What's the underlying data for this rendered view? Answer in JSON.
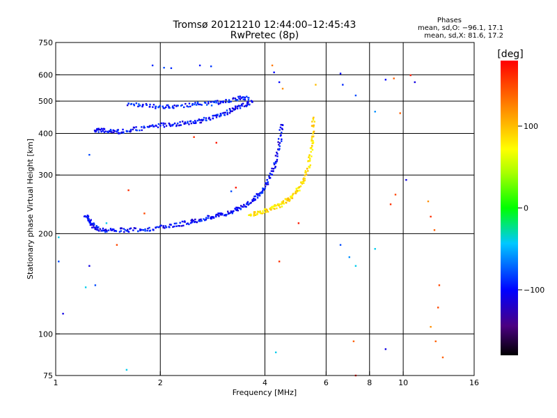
{
  "chart_data": {
    "type": "scatter",
    "title": "Tromsø 20121210 12:44:00–12:45:43",
    "subtitle": "RwPretec (8p)",
    "xlabel": "Frequency [MHz]",
    "ylabel": "Stationary phase Virtual Height [km]",
    "xscale": "log",
    "yscale": "log",
    "xlim": [
      1,
      16
    ],
    "ylim": [
      75,
      750
    ],
    "x_ticks": [
      1,
      2,
      4,
      6,
      8,
      10,
      16
    ],
    "x_tick_labels": [
      "1",
      "2",
      "4",
      "6",
      "8",
      "10",
      "16"
    ],
    "y_ticks": [
      75,
      100,
      200,
      300,
      400,
      500,
      600,
      750
    ],
    "y_tick_labels": [
      "75",
      "100",
      "200",
      "300",
      "400",
      "500",
      "600",
      "750"
    ],
    "x_grid": [
      1,
      2,
      4,
      6,
      8,
      10
    ],
    "y_grid": [
      100,
      200,
      300,
      400,
      500,
      600
    ],
    "grid": true,
    "phases": {
      "heading": "Phases",
      "o_line": "mean, sd,O: −96.1, 17.1",
      "x_line": "mean, sd,X:  81.6, 17.2"
    },
    "colorbar": {
      "label": "[deg]",
      "range": [
        -180,
        180
      ],
      "ticks": [
        100,
        0,
        -100
      ],
      "tick_labels": [
        "100",
        "0",
        "−100"
      ],
      "colormap": "rainbow (black→purple→blue→cyan→green→yellow→orange→red)"
    },
    "series": [
      {
        "description_key": "F2 O-mode trace",
        "phase_deg": -100,
        "points": [
          [
            1.22,
            228
          ],
          [
            1.25,
            218
          ],
          [
            1.28,
            212
          ],
          [
            1.32,
            207
          ],
          [
            1.4,
            205
          ],
          [
            1.55,
            205
          ],
          [
            1.7,
            205
          ],
          [
            1.9,
            207
          ],
          [
            2.1,
            210
          ],
          [
            2.3,
            214
          ],
          [
            2.5,
            218
          ],
          [
            2.7,
            222
          ],
          [
            2.9,
            226
          ],
          [
            3.1,
            230
          ],
          [
            3.3,
            236
          ],
          [
            3.5,
            243
          ],
          [
            3.7,
            252
          ],
          [
            3.85,
            262
          ],
          [
            4.0,
            276
          ],
          [
            4.15,
            295
          ],
          [
            4.3,
            330
          ],
          [
            4.42,
            380
          ],
          [
            4.48,
            430
          ]
        ]
      },
      {
        "description_key": "F2 O-mode second hop",
        "phase_deg": -100,
        "points": [
          [
            1.3,
            410
          ],
          [
            1.35,
            408
          ],
          [
            1.45,
            406
          ],
          [
            1.55,
            405
          ],
          [
            1.7,
            412
          ],
          [
            1.9,
            420
          ],
          [
            2.1,
            425
          ],
          [
            2.3,
            428
          ],
          [
            2.5,
            432
          ],
          [
            2.7,
            440
          ],
          [
            2.9,
            450
          ],
          [
            3.1,
            462
          ],
          [
            3.3,
            475
          ],
          [
            3.5,
            488
          ],
          [
            3.7,
            498
          ]
        ]
      },
      {
        "description_key": "upper trace",
        "phase_deg": -95,
        "points": [
          [
            1.6,
            485
          ],
          [
            1.8,
            488
          ],
          [
            2.0,
            480
          ],
          [
            2.2,
            483
          ],
          [
            2.5,
            488
          ],
          [
            2.8,
            492
          ],
          [
            3.1,
            500
          ],
          [
            3.4,
            510
          ],
          [
            3.6,
            512
          ]
        ]
      },
      {
        "description_key": "F2 X-mode trace",
        "phase_deg": 85,
        "points": [
          [
            3.6,
            228
          ],
          [
            3.8,
            231
          ],
          [
            4.0,
            234
          ],
          [
            4.2,
            238
          ],
          [
            4.4,
            243
          ],
          [
            4.6,
            250
          ],
          [
            4.8,
            260
          ],
          [
            5.0,
            272
          ],
          [
            5.2,
            290
          ],
          [
            5.35,
            320
          ],
          [
            5.45,
            360
          ],
          [
            5.5,
            400
          ],
          [
            5.52,
            450
          ]
        ]
      }
    ],
    "scattered_points": [
      [
        1.9,
        640,
        -90
      ],
      [
        2.05,
        630,
        -80
      ],
      [
        2.15,
        628,
        -90
      ],
      [
        2.6,
        640,
        -95
      ],
      [
        2.8,
        636,
        -85
      ],
      [
        4.2,
        640,
        130
      ],
      [
        4.25,
        610,
        -100
      ],
      [
        4.4,
        570,
        -100
      ],
      [
        4.5,
        545,
        120
      ],
      [
        5.6,
        560,
        100
      ],
      [
        6.6,
        605,
        -100
      ],
      [
        6.7,
        560,
        -90
      ],
      [
        7.3,
        520,
        -80
      ],
      [
        8.9,
        580,
        -100
      ],
      [
        9.4,
        585,
        140
      ],
      [
        10.5,
        598,
        170
      ],
      [
        10.8,
        570,
        -110
      ],
      [
        1.25,
        345,
        -80
      ],
      [
        1.4,
        215,
        -40
      ],
      [
        1.62,
        270,
        160
      ],
      [
        1.25,
        160,
        -110
      ],
      [
        1.5,
        185,
        150
      ],
      [
        1.02,
        195,
        -40
      ],
      [
        1.05,
        115,
        -110
      ],
      [
        1.02,
        165,
        -80
      ],
      [
        1.22,
        138,
        -40
      ],
      [
        1.3,
        140,
        -80
      ],
      [
        1.6,
        78,
        -40
      ],
      [
        4.4,
        165,
        160
      ],
      [
        4.3,
        88,
        -40
      ],
      [
        5.0,
        215,
        170
      ],
      [
        6.6,
        185,
        -80
      ],
      [
        7.0,
        170,
        -60
      ],
      [
        7.3,
        160,
        -40
      ],
      [
        7.2,
        95,
        140
      ],
      [
        7.3,
        75,
        170
      ],
      [
        8.3,
        180,
        -40
      ],
      [
        8.9,
        90,
        -110
      ],
      [
        9.8,
        460,
        140
      ],
      [
        10.2,
        290,
        -110
      ],
      [
        11.8,
        250,
        120
      ],
      [
        12.0,
        225,
        160
      ],
      [
        12.3,
        205,
        140
      ],
      [
        12.7,
        140,
        150
      ],
      [
        12.6,
        120,
        150
      ],
      [
        12.0,
        105,
        120
      ],
      [
        12.4,
        95,
        140
      ],
      [
        13.0,
        85,
        140
      ],
      [
        9.5,
        262,
        150
      ],
      [
        9.2,
        245,
        160
      ],
      [
        2.5,
        390,
        160
      ],
      [
        2.9,
        375,
        170
      ],
      [
        3.3,
        275,
        170
      ],
      [
        3.2,
        268,
        -80
      ],
      [
        1.8,
        230,
        150
      ],
      [
        8.3,
        465,
        -60
      ]
    ]
  }
}
